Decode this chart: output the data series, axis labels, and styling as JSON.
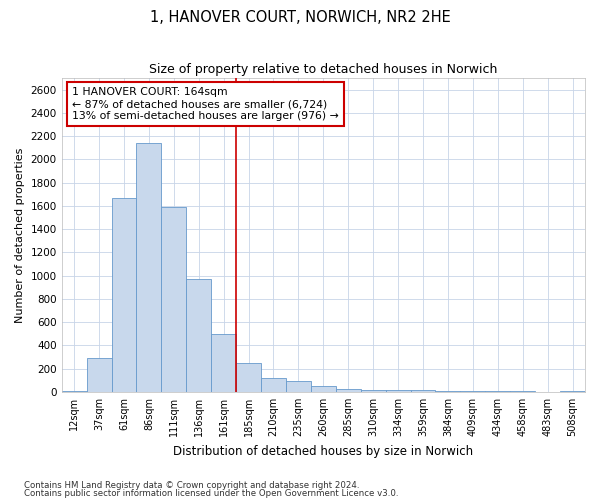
{
  "title": "1, HANOVER COURT, NORWICH, NR2 2HE",
  "subtitle": "Size of property relative to detached houses in Norwich",
  "xlabel": "Distribution of detached houses by size in Norwich",
  "ylabel": "Number of detached properties",
  "bar_color": "#c8d8ec",
  "bar_edge_color": "#6699cc",
  "categories": [
    "12sqm",
    "37sqm",
    "61sqm",
    "86sqm",
    "111sqm",
    "136sqm",
    "161sqm",
    "185sqm",
    "210sqm",
    "235sqm",
    "260sqm",
    "285sqm",
    "310sqm",
    "334sqm",
    "359sqm",
    "384sqm",
    "409sqm",
    "434sqm",
    "458sqm",
    "483sqm",
    "508sqm"
  ],
  "values": [
    10,
    290,
    1670,
    2140,
    1590,
    970,
    500,
    250,
    120,
    95,
    50,
    28,
    20,
    16,
    15,
    6,
    10,
    5,
    5,
    2,
    10
  ],
  "ylim": [
    0,
    2700
  ],
  "yticks": [
    0,
    200,
    400,
    600,
    800,
    1000,
    1200,
    1400,
    1600,
    1800,
    2000,
    2200,
    2400,
    2600
  ],
  "vline_index": 6,
  "vline_color": "#cc0000",
  "annotation_title": "1 HANOVER COURT: 164sqm",
  "annotation_line1": "← 87% of detached houses are smaller (6,724)",
  "annotation_line2": "13% of semi-detached houses are larger (976) →",
  "annotation_box_color": "#ffffff",
  "annotation_border_color": "#cc0000",
  "grid_color": "#c8d4e8",
  "background_color": "#ffffff",
  "footer1": "Contains HM Land Registry data © Crown copyright and database right 2024.",
  "footer2": "Contains public sector information licensed under the Open Government Licence v3.0."
}
